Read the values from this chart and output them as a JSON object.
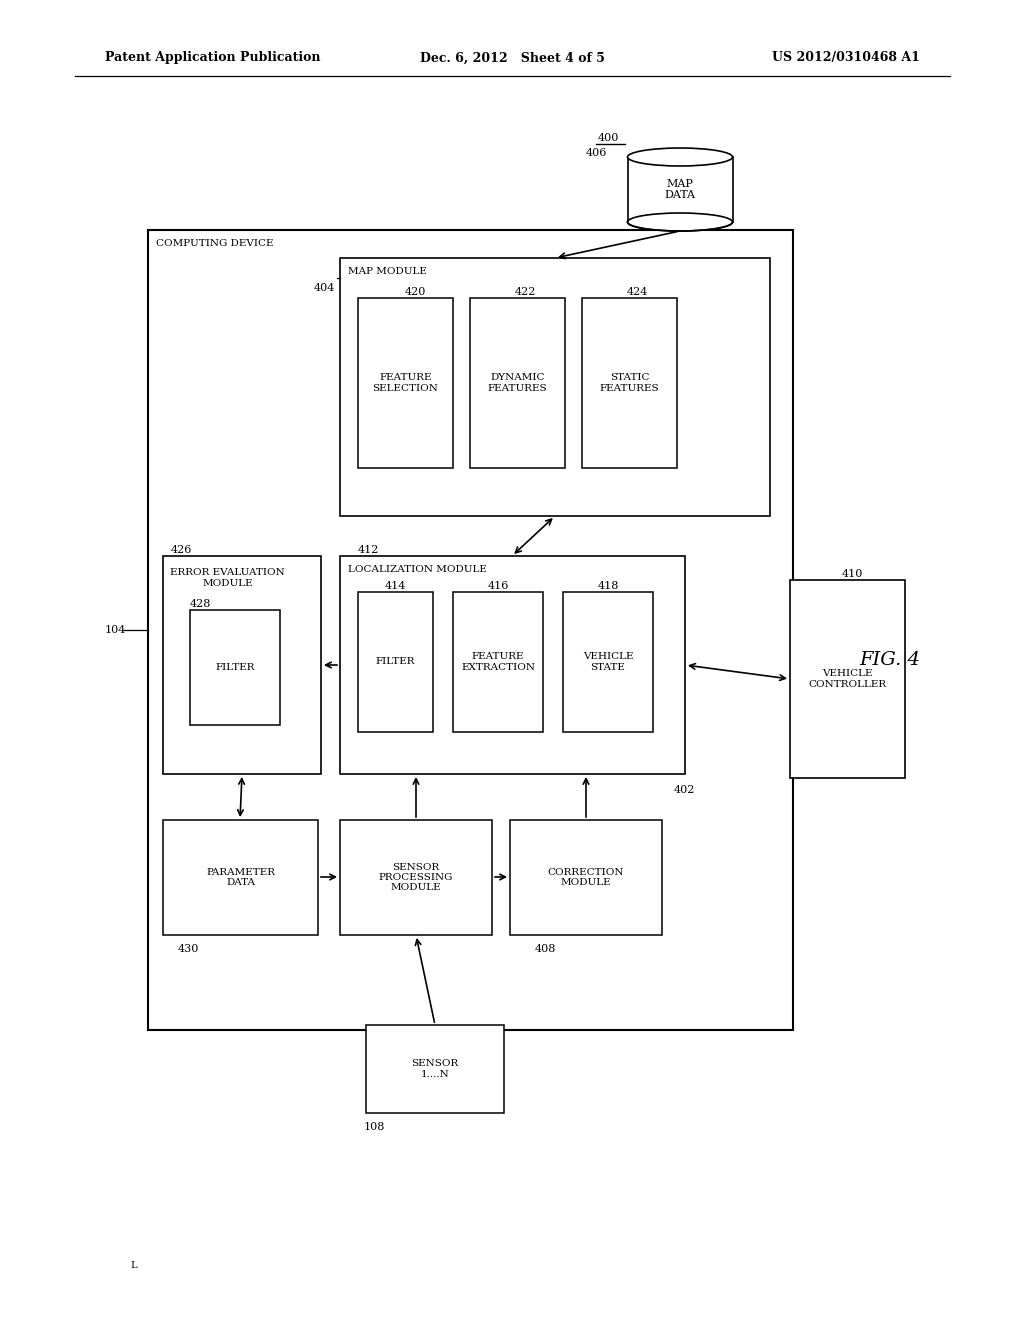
{
  "bg": "#ffffff",
  "header_left": "Patent Application Publication",
  "header_center": "Dec. 6, 2012   Sheet 4 of 5",
  "header_right": "US 2012/0310468 A1",
  "fig_label": "FIG. 4",
  "computing_device": "COMPUTING DEVICE",
  "map_data": "MAP\nDATA",
  "map_module": "MAP MODULE",
  "feature_selection": "FEATURE\nSELECTION",
  "dynamic_features": "DYNAMIC\nFEATURES",
  "static_features": "STATIC\nFEATURES",
  "localization_module": "LOCALIZATION MODULE",
  "filter_loc": "FILTER",
  "feature_extraction": "FEATURE\nEXTRACTION",
  "vehicle_state": "VEHICLE\nSTATE",
  "error_eval": "ERROR EVALUATION\nMODULE",
  "filter_ee": "FILTER",
  "parameter_data": "PARAMETER\nDATA",
  "sensor_proc": "SENSOR\nPROCESSING\nMODULE",
  "correction": "CORRECTION\nMODULE",
  "vehicle_ctrl": "VEHICLE\nCONTROLLER",
  "sensor": "SENSOR\n1....N",
  "n400": "400",
  "n104": "104",
  "n404": "404",
  "n406": "406",
  "n408": "408",
  "n410": "410",
  "n412": "412",
  "n402": "402",
  "n426": "426",
  "n428": "428",
  "n414": "414",
  "n416": "416",
  "n418": "418",
  "n420": "420",
  "n422": "422",
  "n424": "424",
  "n430": "430",
  "n108": "108"
}
